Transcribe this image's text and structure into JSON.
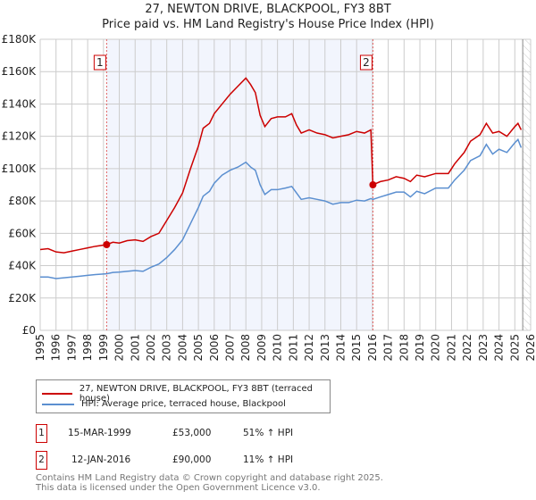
{
  "chart_data": {
    "type": "line",
    "title": "27, NEWTON DRIVE, BLACKPOOL, FY3 8BT",
    "subtitle": "Price paid vs. HM Land Registry's House Price Index (HPI)",
    "xlim": [
      1995,
      2026
    ],
    "ylim": [
      0,
      180000
    ],
    "yticks": [
      0,
      20000,
      40000,
      60000,
      80000,
      100000,
      120000,
      140000,
      160000,
      180000
    ],
    "ytick_labels": [
      "£0",
      "£20K",
      "£40K",
      "£60K",
      "£80K",
      "£100K",
      "£120K",
      "£140K",
      "£160K",
      "£180K"
    ],
    "xticks": [
      "1995",
      "1996",
      "1997",
      "1998",
      "1999",
      "2000",
      "2001",
      "2002",
      "2003",
      "2004",
      "2005",
      "2006",
      "2007",
      "2008",
      "2009",
      "2010",
      "2011",
      "2012",
      "2013",
      "2014",
      "2015",
      "2016",
      "2017",
      "2018",
      "2019",
      "2020",
      "2021",
      "2022",
      "2023",
      "2024",
      "2025",
      "2026"
    ],
    "grid": true,
    "series": [
      {
        "name": "27, NEWTON DRIVE, BLACKPOOL, FY3 8BT (terraced house)",
        "color": "#cc0000",
        "points": [
          [
            1995,
            50000
          ],
          [
            1995.5,
            50500
          ],
          [
            1996,
            48500
          ],
          [
            1996.5,
            48000
          ],
          [
            1997,
            49000
          ],
          [
            1997.5,
            50000
          ],
          [
            1998,
            51000
          ],
          [
            1998.5,
            52000
          ],
          [
            1999.2,
            53000
          ],
          [
            1999.6,
            54500
          ],
          [
            2000,
            54000
          ],
          [
            2000.5,
            55500
          ],
          [
            2001,
            56000
          ],
          [
            2001.5,
            55000
          ],
          [
            2002,
            58000
          ],
          [
            2002.5,
            60000
          ],
          [
            2003,
            68000
          ],
          [
            2003.5,
            76000
          ],
          [
            2004,
            85000
          ],
          [
            2004.5,
            100000
          ],
          [
            2005,
            114000
          ],
          [
            2005.3,
            125000
          ],
          [
            2005.7,
            128000
          ],
          [
            2006,
            134000
          ],
          [
            2006.5,
            140000
          ],
          [
            2007,
            146000
          ],
          [
            2007.5,
            151000
          ],
          [
            2008,
            156000
          ],
          [
            2008.3,
            152000
          ],
          [
            2008.6,
            147000
          ],
          [
            2008.9,
            133000
          ],
          [
            2009.2,
            126000
          ],
          [
            2009.6,
            131000
          ],
          [
            2010,
            132000
          ],
          [
            2010.5,
            132000
          ],
          [
            2010.9,
            134000
          ],
          [
            2011.2,
            127000
          ],
          [
            2011.5,
            122000
          ],
          [
            2012,
            124000
          ],
          [
            2012.5,
            122000
          ],
          [
            2013,
            121000
          ],
          [
            2013.5,
            119000
          ],
          [
            2014,
            120000
          ],
          [
            2014.5,
            121000
          ],
          [
            2015,
            123000
          ],
          [
            2015.5,
            122000
          ],
          [
            2015.9,
            124000
          ],
          [
            2016.03,
            90000
          ],
          [
            2016.5,
            92000
          ],
          [
            2017,
            93000
          ],
          [
            2017.5,
            95000
          ],
          [
            2018,
            94000
          ],
          [
            2018.4,
            92000
          ],
          [
            2018.8,
            96000
          ],
          [
            2019.3,
            95000
          ],
          [
            2020,
            97000
          ],
          [
            2020.8,
            97000
          ],
          [
            2021.2,
            103000
          ],
          [
            2021.8,
            110000
          ],
          [
            2022.2,
            117000
          ],
          [
            2022.8,
            121000
          ],
          [
            2023.2,
            128000
          ],
          [
            2023.6,
            122000
          ],
          [
            2024,
            123000
          ],
          [
            2024.5,
            120000
          ],
          [
            2025,
            126000
          ],
          [
            2025.2,
            128000
          ],
          [
            2025.4,
            124000
          ]
        ]
      },
      {
        "name": "HPI: Average price, terraced house, Blackpool",
        "color": "#5b8fd0",
        "points": [
          [
            1995,
            33000
          ],
          [
            1995.5,
            33000
          ],
          [
            1996,
            32000
          ],
          [
            1996.5,
            32500
          ],
          [
            1997,
            33000
          ],
          [
            1997.5,
            33500
          ],
          [
            1998,
            34000
          ],
          [
            1998.5,
            34500
          ],
          [
            1999.2,
            35000
          ],
          [
            1999.6,
            35800
          ],
          [
            2000,
            36000
          ],
          [
            2000.5,
            36500
          ],
          [
            2001,
            37000
          ],
          [
            2001.5,
            36500
          ],
          [
            2002,
            39000
          ],
          [
            2002.5,
            41000
          ],
          [
            2003,
            45000
          ],
          [
            2003.5,
            50000
          ],
          [
            2004,
            56000
          ],
          [
            2004.5,
            66000
          ],
          [
            2005,
            76000
          ],
          [
            2005.3,
            83000
          ],
          [
            2005.7,
            86000
          ],
          [
            2006,
            91000
          ],
          [
            2006.5,
            96000
          ],
          [
            2007,
            99000
          ],
          [
            2007.5,
            101000
          ],
          [
            2008,
            104000
          ],
          [
            2008.3,
            101000
          ],
          [
            2008.6,
            99000
          ],
          [
            2008.9,
            90000
          ],
          [
            2009.2,
            84000
          ],
          [
            2009.6,
            87000
          ],
          [
            2010,
            87000
          ],
          [
            2010.5,
            88000
          ],
          [
            2010.9,
            89000
          ],
          [
            2011.2,
            85000
          ],
          [
            2011.5,
            81000
          ],
          [
            2012,
            82000
          ],
          [
            2012.5,
            81000
          ],
          [
            2013,
            80000
          ],
          [
            2013.5,
            78000
          ],
          [
            2014,
            79000
          ],
          [
            2014.5,
            79000
          ],
          [
            2015,
            80500
          ],
          [
            2015.5,
            80000
          ],
          [
            2015.9,
            81500
          ],
          [
            2016.03,
            81000
          ],
          [
            2016.5,
            82500
          ],
          [
            2017,
            84000
          ],
          [
            2017.5,
            85500
          ],
          [
            2018,
            85500
          ],
          [
            2018.4,
            82500
          ],
          [
            2018.8,
            86000
          ],
          [
            2019.3,
            84500
          ],
          [
            2020,
            88000
          ],
          [
            2020.8,
            88000
          ],
          [
            2021.2,
            93000
          ],
          [
            2021.8,
            99000
          ],
          [
            2022.2,
            105000
          ],
          [
            2022.8,
            108000
          ],
          [
            2023.2,
            115000
          ],
          [
            2023.6,
            109000
          ],
          [
            2024,
            112000
          ],
          [
            2024.5,
            110000
          ],
          [
            2025,
            116000
          ],
          [
            2025.2,
            118000
          ],
          [
            2025.4,
            113000
          ]
        ]
      }
    ],
    "sales": [
      {
        "label": "1",
        "x": 1999.2,
        "y": 53000
      },
      {
        "label": "2",
        "x": 2016.03,
        "y": 90000
      }
    ],
    "shaded_range": [
      1999.2,
      2016.03
    ],
    "hatch_from": 2025.5
  },
  "legend": {
    "red": "27, NEWTON DRIVE, BLACKPOOL, FY3 8BT (terraced house)",
    "blue": "HPI: Average price, terraced house, Blackpool"
  },
  "table": [
    {
      "num": "1",
      "date": "15-MAR-1999",
      "price": "£53,000",
      "hpi": "51% ↑ HPI"
    },
    {
      "num": "2",
      "date": "12-JAN-2016",
      "price": "£90,000",
      "hpi": "11% ↑ HPI"
    }
  ],
  "footer": {
    "line1": "Contains HM Land Registry data © Crown copyright and database right 2025.",
    "line2": "This data is licensed under the Open Government Licence v3.0."
  }
}
